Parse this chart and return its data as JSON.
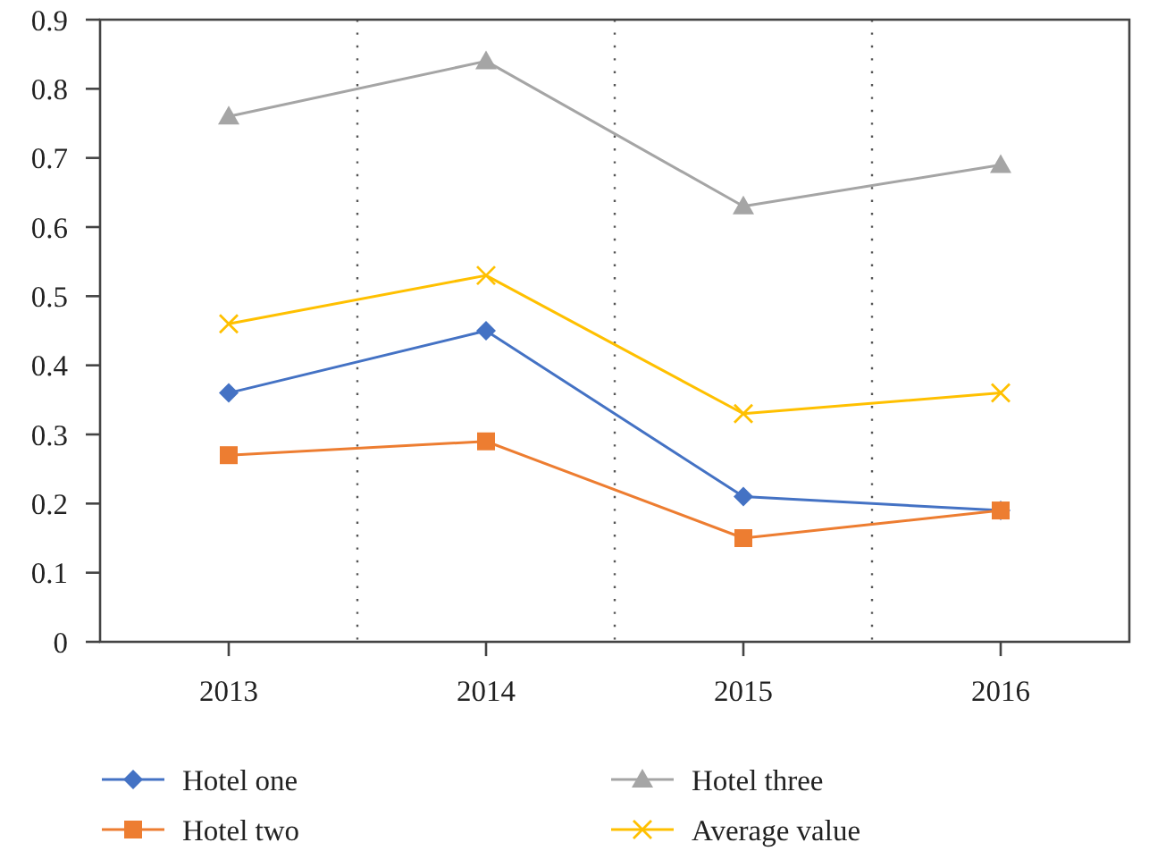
{
  "chart_data": {
    "type": "line",
    "categories": [
      "2013",
      "2014",
      "2015",
      "2016"
    ],
    "series": [
      {
        "name": "Hotel one",
        "color": "#4472c4",
        "marker": "diamond",
        "values": [
          0.36,
          0.45,
          0.21,
          0.19
        ]
      },
      {
        "name": "Hotel two",
        "color": "#ed7d31",
        "marker": "square",
        "values": [
          0.27,
          0.29,
          0.15,
          0.19
        ]
      },
      {
        "name": "Hotel three",
        "color": "#a5a5a5",
        "marker": "triangle",
        "values": [
          0.76,
          0.84,
          0.63,
          0.69
        ]
      },
      {
        "name": "Average value",
        "color": "#ffc000",
        "marker": "cross",
        "values": [
          0.46,
          0.53,
          0.33,
          0.36
        ]
      }
    ],
    "ylim": [
      0,
      0.9
    ],
    "yticks": [
      0,
      0.1,
      0.2,
      0.3,
      0.4,
      0.5,
      0.6,
      0.7,
      0.8,
      0.9
    ],
    "grid": "x",
    "legend": "bottom",
    "line_style": "solid"
  }
}
